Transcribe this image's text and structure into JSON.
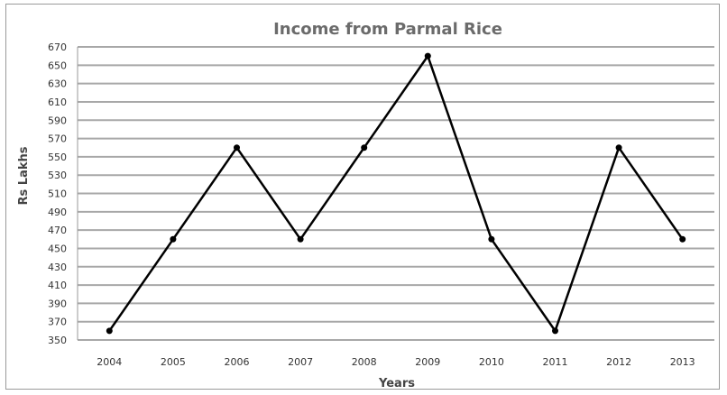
{
  "chart_data": {
    "type": "line",
    "title": "Income from Parmal Rice",
    "xlabel": "Years",
    "ylabel": "Rs Lakhs",
    "categories": [
      "2004",
      "2005",
      "2006",
      "2007",
      "2008",
      "2009",
      "2010",
      "2011",
      "2012",
      "2013"
    ],
    "series": [
      {
        "values": [
          360,
          460,
          560,
          460,
          560,
          660,
          460,
          360,
          560,
          460
        ]
      }
    ],
    "yticks": [
      350,
      370,
      390,
      410,
      430,
      450,
      470,
      490,
      510,
      530,
      550,
      570,
      590,
      610,
      630,
      650,
      670
    ],
    "ylim": [
      350,
      670
    ],
    "grid": true,
    "colors": {
      "line": "#000000",
      "grid": "#a8a8a8",
      "marker": "#000000"
    }
  }
}
